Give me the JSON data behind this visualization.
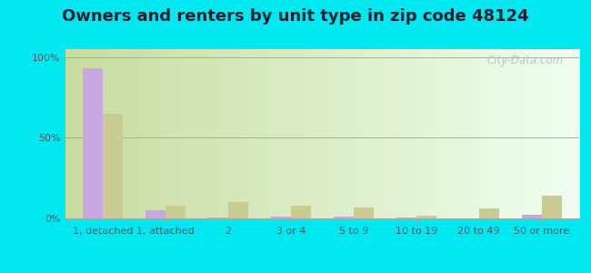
{
  "title": "Owners and renters by unit type in zip code 48124",
  "categories": [
    "1, detached",
    "1, attached",
    "2",
    "3 or 4",
    "5 to 9",
    "10 to 19",
    "20 to 49",
    "50 or more"
  ],
  "owner_values": [
    93,
    5,
    0.5,
    1,
    1,
    0.5,
    0,
    2
  ],
  "renter_values": [
    65,
    8,
    10,
    8,
    7,
    1.5,
    6,
    14
  ],
  "owner_color": "#c8a8e0",
  "renter_color": "#c8cc90",
  "background_outer": "#00e8f0",
  "ylabel_ticks": [
    "0%",
    "50%",
    "100%"
  ],
  "ylabel_tick_vals": [
    0,
    50,
    100
  ],
  "ylim": [
    0,
    105
  ],
  "bar_width": 0.32,
  "watermark": "City-Data.com",
  "title_fontsize": 13,
  "tick_fontsize": 8,
  "legend_fontsize": 9,
  "grad_left": "#c8dca0",
  "grad_right": "#f0fff0"
}
